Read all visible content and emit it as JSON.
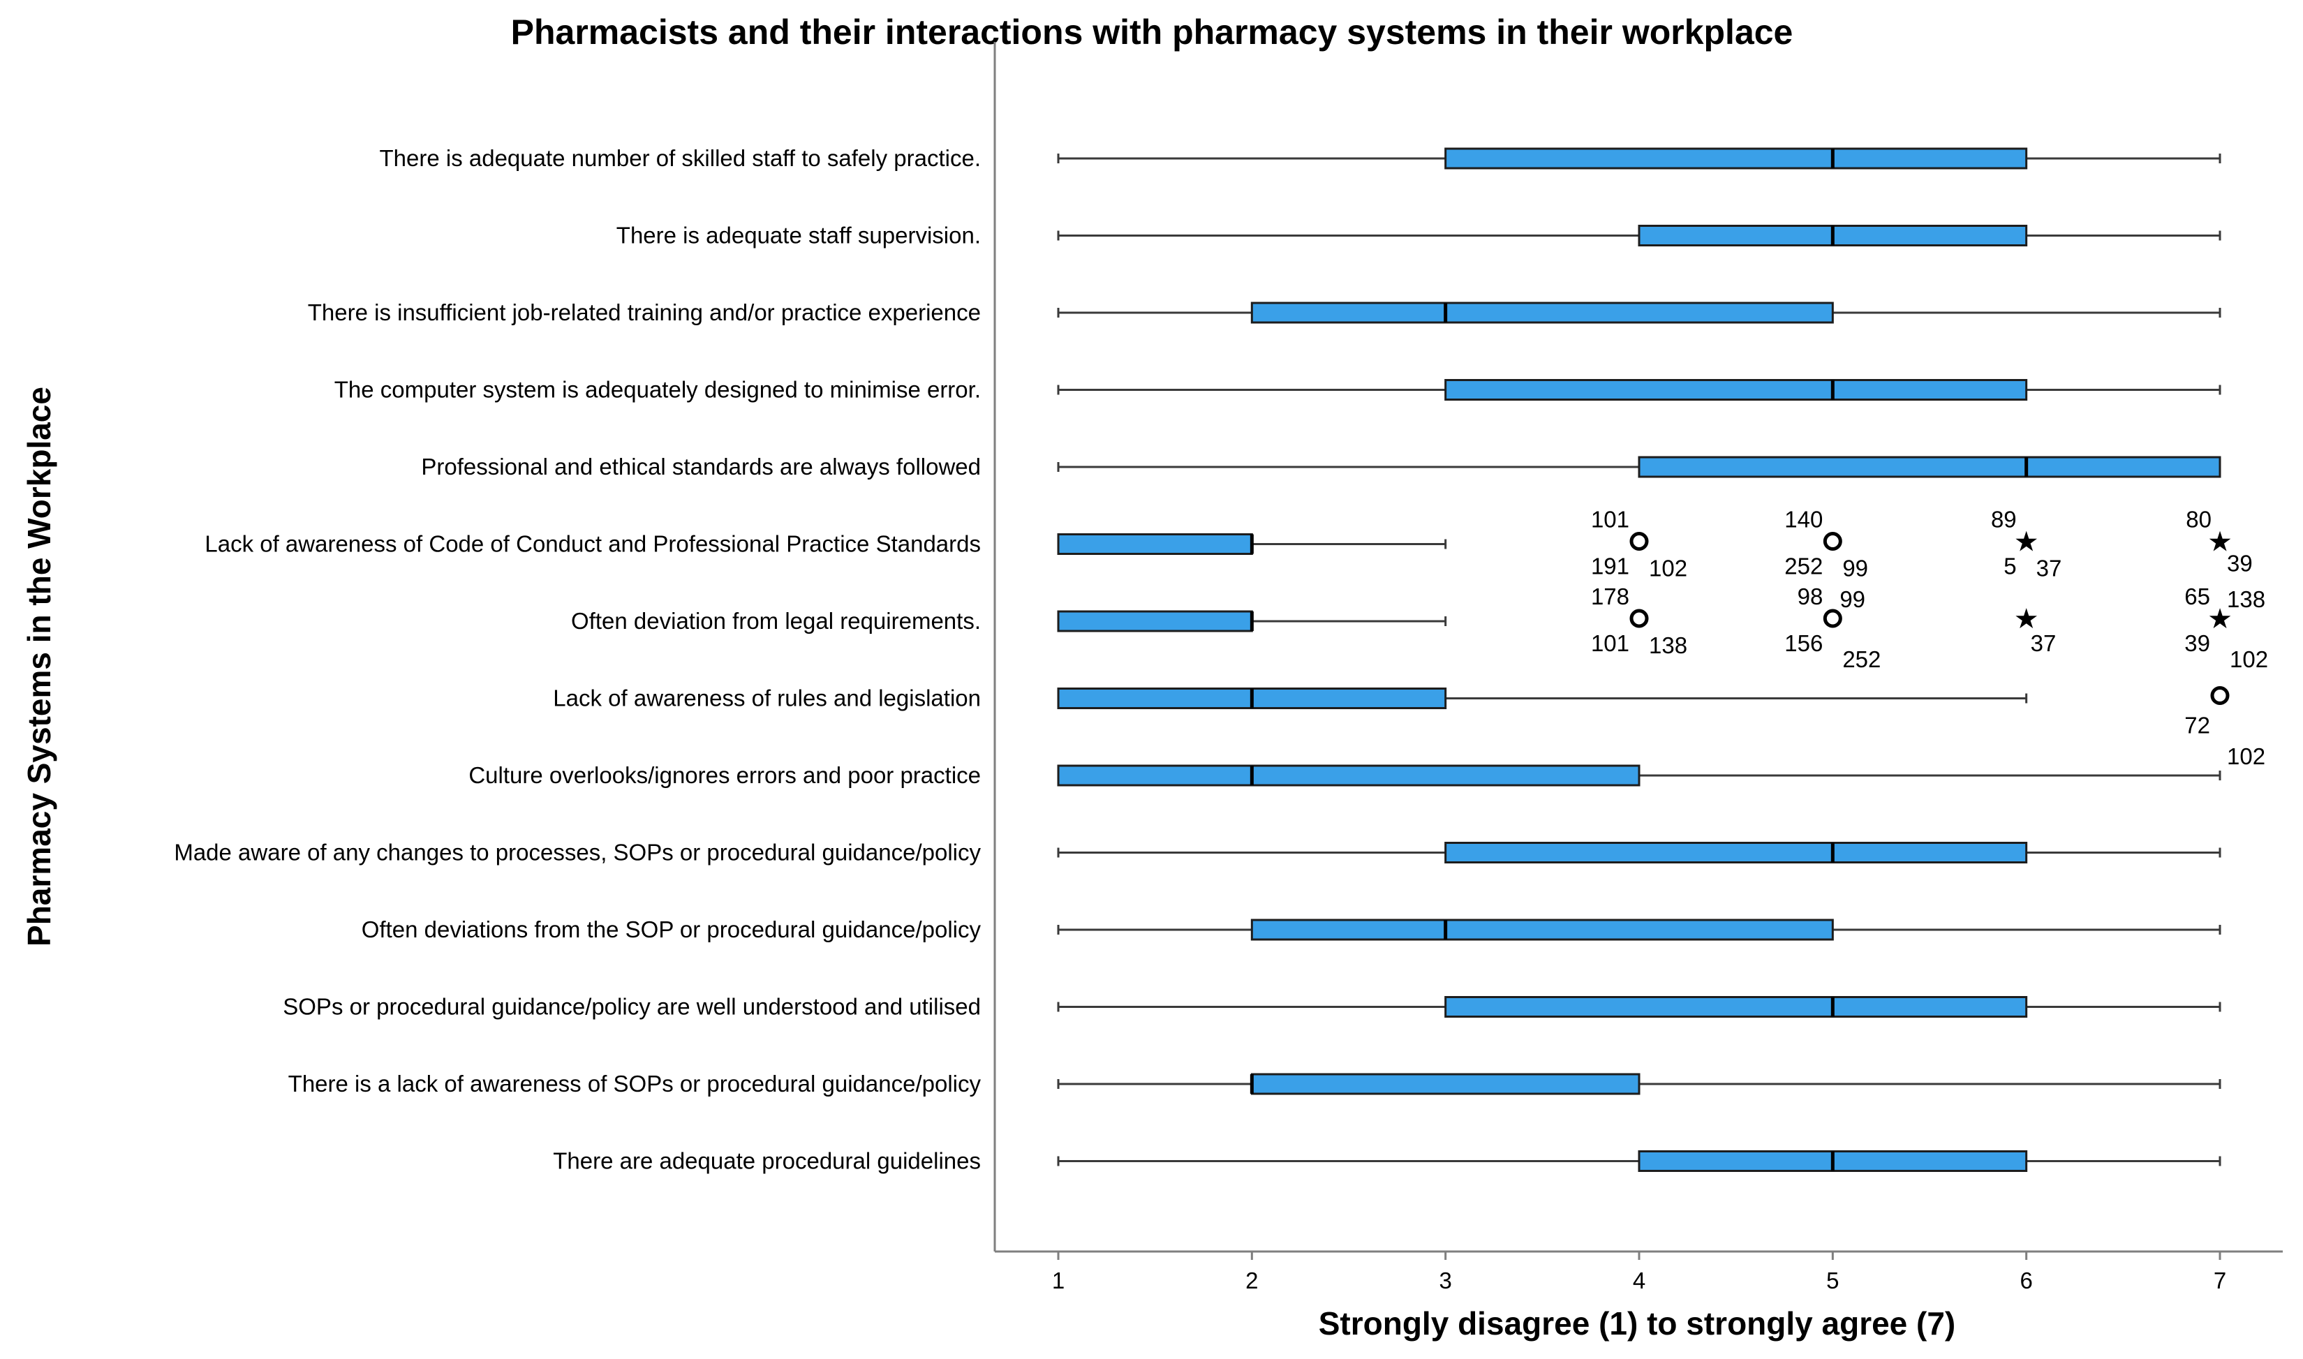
{
  "chart_data": {
    "type": "boxplot",
    "title": "Pharmacists and their interactions with pharmacy systems in their workplace",
    "xlabel": "Strongly disagree (1) to strongly agree (7)",
    "ylabel": "Pharmacy Systems in the Workplace",
    "xlim": [
      1,
      7
    ],
    "xticks": [
      "1",
      "2",
      "3",
      "4",
      "5",
      "6",
      "7"
    ],
    "items": [
      {
        "label": "There is adequate number of skilled staff to safely practice.",
        "min": 1,
        "q1": 3,
        "median": 5,
        "q3": 6,
        "max": 7
      },
      {
        "label": "There is adequate staff supervision.",
        "min": 1,
        "q1": 4,
        "median": 5,
        "q3": 6,
        "max": 7
      },
      {
        "label": "There is insufficient job-related training and/or practice experience",
        "min": 1,
        "q1": 2,
        "median": 3,
        "q3": 5,
        "max": 7
      },
      {
        "label": "The computer system is adequately designed to minimise error.",
        "min": 1,
        "q1": 3,
        "median": 5,
        "q3": 6,
        "max": 7
      },
      {
        "label": "Professional and ethical standards are always followed",
        "min": 1,
        "q1": 4,
        "median": 6,
        "q3": 7,
        "max": 7
      },
      {
        "label": "Lack of awareness of Code of Conduct and Professional Practice Standards",
        "min": 1,
        "q1": 1,
        "median": 2,
        "q3": 2,
        "max": 3,
        "outliers": [
          {
            "value": 4,
            "marker": "circle",
            "labels": [
              "101",
              "191",
              "102"
            ]
          },
          {
            "value": 5,
            "marker": "circle",
            "labels": [
              "140",
              "252",
              "99"
            ]
          },
          {
            "value": 6,
            "marker": "star",
            "labels": [
              "89",
              "5",
              "37"
            ]
          },
          {
            "value": 7,
            "marker": "star",
            "labels": [
              "80",
              "39"
            ]
          }
        ]
      },
      {
        "label": "Often deviation from legal requirements.",
        "min": 1,
        "q1": 1,
        "median": 2,
        "q3": 2,
        "max": 3,
        "outliers": [
          {
            "value": 4,
            "marker": "circle",
            "labels": [
              "178",
              "101",
              "138"
            ]
          },
          {
            "value": 5,
            "marker": "circle",
            "labels": [
              "98",
              "99",
              "156",
              "252"
            ]
          },
          {
            "value": 6,
            "marker": "star",
            "labels": [
              "37"
            ]
          },
          {
            "value": 7,
            "marker": "star",
            "labels": [
              "65",
              "138",
              "39",
              "102"
            ]
          }
        ]
      },
      {
        "label": "Lack of awareness of rules and legislation",
        "min": 1,
        "q1": 1,
        "median": 2,
        "q3": 3,
        "max": 6,
        "outliers": [
          {
            "value": 7,
            "marker": "circle",
            "labels": [
              "72"
            ]
          }
        ]
      },
      {
        "label": "Culture overlooks/ignores errors and poor practice",
        "min": 1,
        "q1": 1,
        "median": 2,
        "q3": 4,
        "max": 7,
        "outliers": [
          {
            "value": 7,
            "marker": "none",
            "labels": [
              "102"
            ]
          }
        ]
      },
      {
        "label": "Made aware of any changes to processes, SOPs or procedural guidance/policy",
        "min": 1,
        "q1": 3,
        "median": 5,
        "q3": 6,
        "max": 7
      },
      {
        "label": "Often deviations from the SOP or  procedural guidance/policy",
        "min": 1,
        "q1": 2,
        "median": 3,
        "q3": 5,
        "max": 7
      },
      {
        "label": "SOPs or procedural guidance/policy are well understood and utilised",
        "min": 1,
        "q1": 3,
        "median": 5,
        "q3": 6,
        "max": 7
      },
      {
        "label": "There is a lack of awareness of SOPs or procedural guidance/policy",
        "min": 1,
        "q1": 2,
        "median": 2,
        "q3": 4,
        "max": 7
      },
      {
        "label": "There are adequate procedural guidelines",
        "min": 1,
        "q1": 4,
        "median": 5,
        "q3": 6,
        "max": 7
      }
    ],
    "colors": {
      "box": "#3aa0e8",
      "line": "#3a3a3a"
    }
  }
}
